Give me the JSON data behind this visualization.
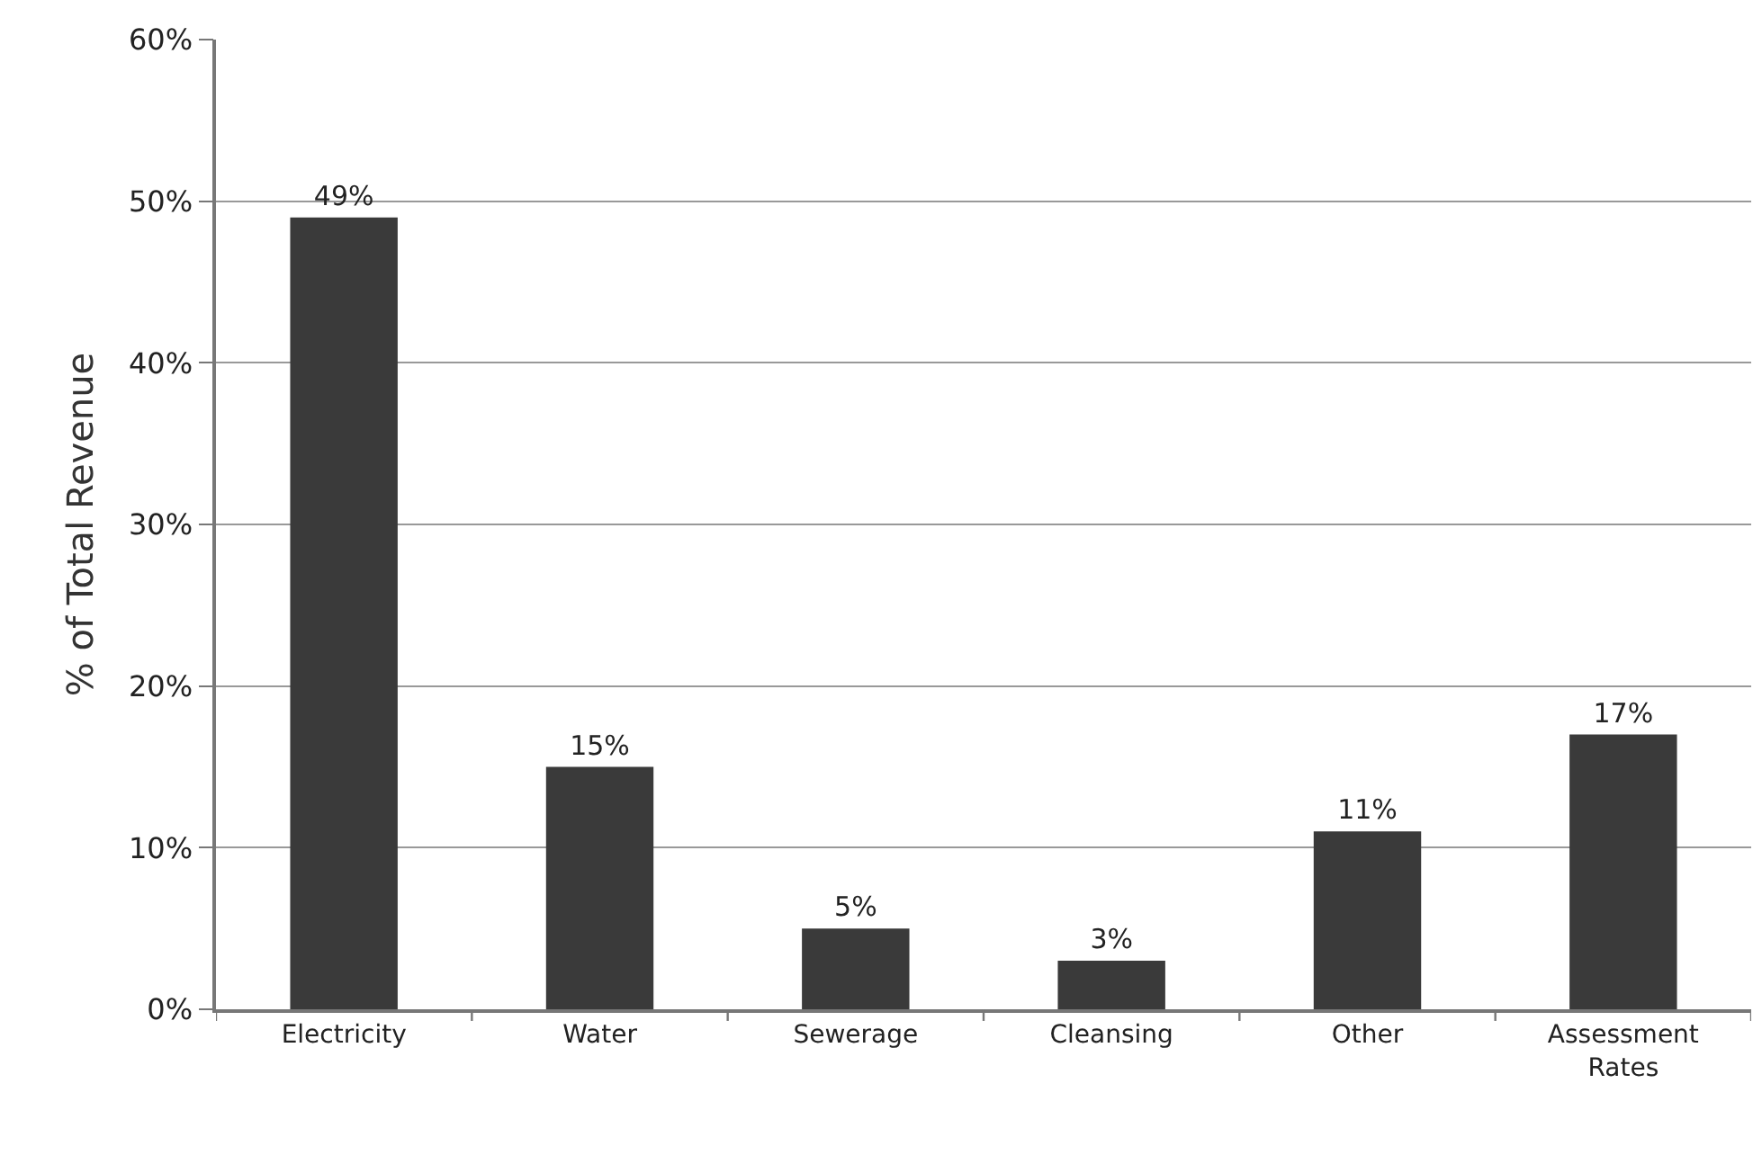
{
  "chart_data": {
    "type": "bar",
    "ylabel": "% of Total Revenue",
    "categories": [
      "Electricity",
      "Water",
      "Sewerage",
      "Cleansing",
      "Other",
      "Assessment Rates"
    ],
    "values": [
      49,
      15,
      5,
      3,
      11,
      17
    ],
    "value_labels": [
      "49%",
      "15%",
      "5%",
      "3%",
      "11%",
      "17%"
    ],
    "color": "#3a3a3a",
    "ylim": [
      0,
      60
    ],
    "yticks": [
      {
        "value": 0,
        "label": "0%"
      },
      {
        "value": 10,
        "label": "10%"
      },
      {
        "value": 20,
        "label": "20%"
      },
      {
        "value": 30,
        "label": "30%"
      },
      {
        "value": 40,
        "label": "40%"
      },
      {
        "value": 50,
        "label": "50%"
      },
      {
        "value": 60,
        "label": "60%"
      }
    ],
    "grid": "y"
  }
}
